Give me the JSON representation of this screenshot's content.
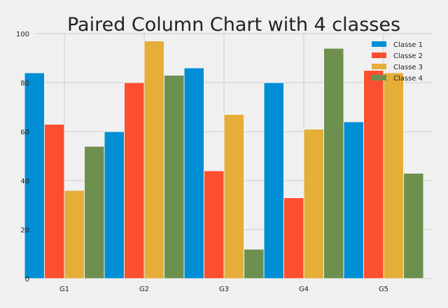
{
  "chart_data": {
    "type": "bar",
    "title": "Paired Column Chart with 4 classes",
    "xlabel": "",
    "ylabel": "",
    "categories": [
      "G1",
      "G2",
      "G3",
      "G4",
      "G5"
    ],
    "ylim": [
      0,
      100
    ],
    "yticks": [
      0,
      20,
      40,
      60,
      80,
      100
    ],
    "grid": true,
    "legend_position": "top-right",
    "series": [
      {
        "name": "Classe 1",
        "color": "#008fd5",
        "values": [
          84,
          60,
          86,
          80,
          64
        ]
      },
      {
        "name": "Classe 2",
        "color": "#fc4f30",
        "values": [
          63,
          80,
          44,
          33,
          85
        ]
      },
      {
        "name": "Classe 3",
        "color": "#e5ae38",
        "values": [
          36,
          97,
          67,
          61,
          84
        ]
      },
      {
        "name": "Classe 4",
        "color": "#6d904f",
        "values": [
          54,
          83,
          12,
          94,
          43
        ]
      }
    ]
  }
}
